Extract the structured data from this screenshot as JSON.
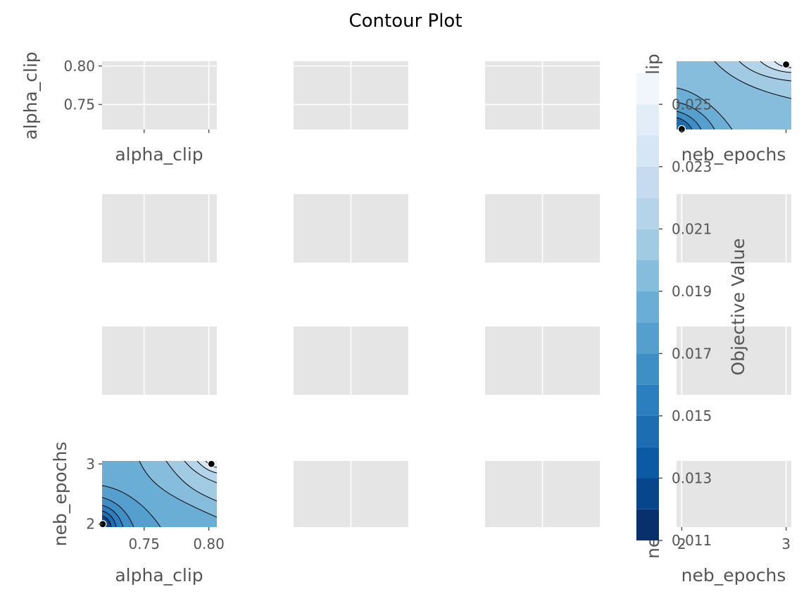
{
  "title": "Contour Plot",
  "chart_data": {
    "type": "contour",
    "title": "Contour Plot",
    "params": [
      "alpha_clip",
      "",
      "",
      "neb_epochs"
    ],
    "axis_ranges": {
      "alpha_clip": [
        0.7175,
        0.8062
      ],
      "neb_epochs": [
        1.95,
        3.05
      ]
    },
    "ticks": {
      "alpha_clip": [
        "0.75",
        "0.80"
      ],
      "neb_epochs": [
        "2",
        "3"
      ],
      "unit_x": [
        "0.0",
        "0.5",
        "1.0"
      ],
      "unit_y": [
        "0",
        "1"
      ]
    },
    "axis_labels": {
      "row0": "alpha_clip",
      "row3": "neb_epochs",
      "col0_top": "alpha_clip",
      "col0_bottom": "alpha_clip",
      "col3_top": "neb_epochs",
      "col3_bottom": "neb_epochs",
      "col3_row0_partial": "lip",
      "col3_row3_partial": "ne"
    },
    "colorbar": {
      "label": "Objective Value",
      "cmap": "Blues_r",
      "range": [
        0.011,
        0.026
      ],
      "levels": [
        0.011,
        0.012,
        0.013,
        0.014,
        0.015,
        0.016,
        0.017,
        0.018,
        0.019,
        0.02,
        0.021,
        0.022,
        0.023,
        0.024,
        0.025,
        0.026
      ],
      "tick_labels": [
        "0.011",
        "0.013",
        "0.015",
        "0.017",
        "0.019",
        "0.021",
        "0.023",
        "0.025"
      ],
      "colors": [
        "#08306b",
        "#08468c",
        "#0c5aa4",
        "#1c6db1",
        "#2c7fbe",
        "#3d8fc6",
        "#549fcd",
        "#6aaed6",
        "#87bddc",
        "#a0cbe2",
        "#b4d5e9",
        "#c6dbef",
        "#d6e6f5",
        "#e2edf8",
        "#f0f6fc"
      ]
    },
    "contour_panels": [
      {
        "name": "alpha_clip_vs_neb_epochs",
        "x": "alpha_clip",
        "y": "neb_epochs"
      },
      {
        "name": "neb_epochs_vs_alpha_clip",
        "x": "neb_epochs",
        "y": "alpha_clip"
      }
    ],
    "observed_points": [
      {
        "alpha_clip": 0.718,
        "neb_epochs": 2,
        "objective": 0.011
      },
      {
        "alpha_clip": 0.802,
        "neb_epochs": 3,
        "objective": 0.026
      }
    ],
    "grid": true,
    "background": "#e5e5e5"
  }
}
